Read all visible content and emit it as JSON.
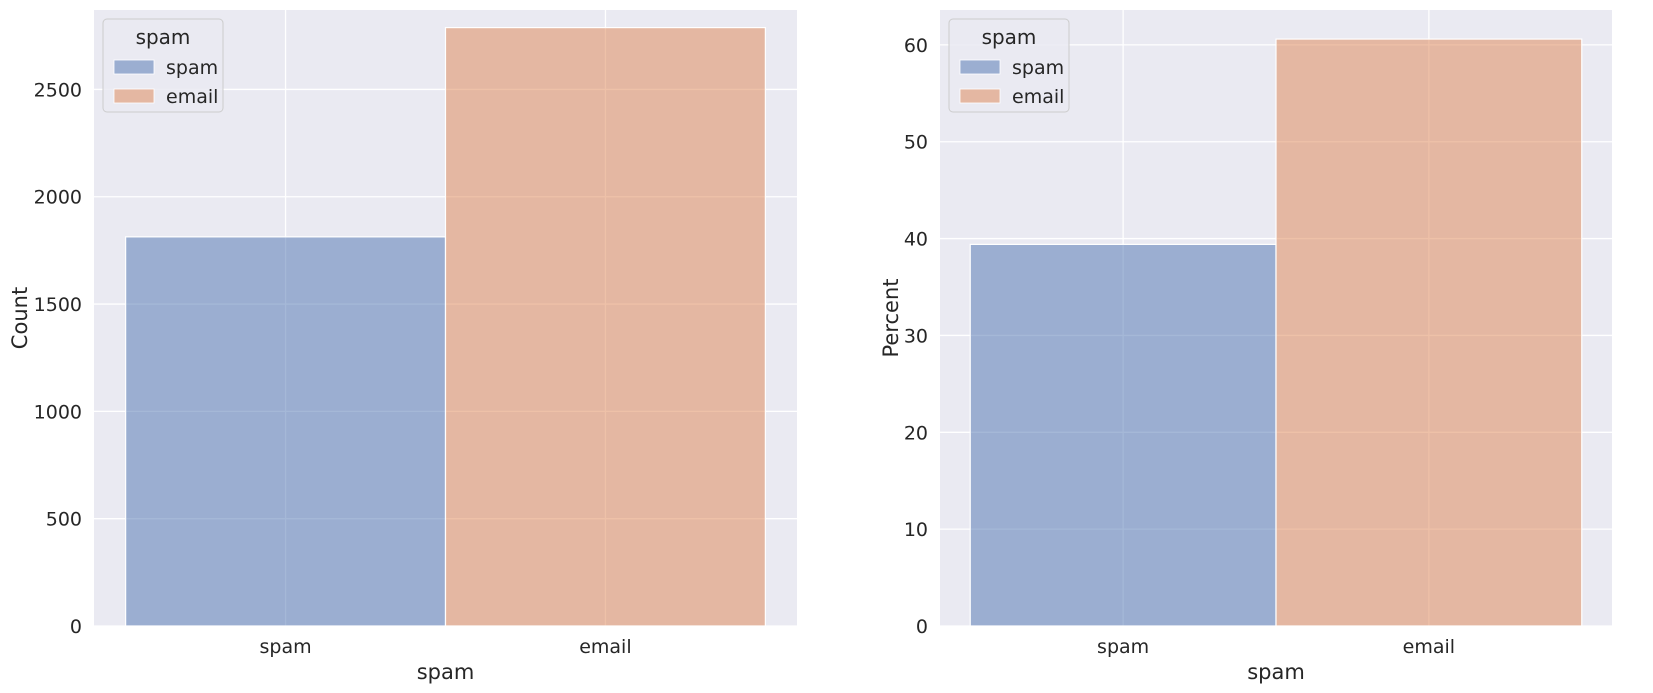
{
  "chart_data": [
    {
      "type": "bar",
      "categories": [
        "spam",
        "email"
      ],
      "series": [
        {
          "name": "spam",
          "values": [
            1813,
            0
          ]
        },
        {
          "name": "email",
          "values": [
            0,
            2788
          ]
        }
      ],
      "xlabel": "spam",
      "ylabel": "Count",
      "ylim": [
        0,
        2870
      ],
      "yticks": [
        0,
        500,
        1000,
        1500,
        2000,
        2500
      ],
      "grid": true,
      "legend": {
        "title": "spam",
        "entries": [
          "spam",
          "email"
        ],
        "placement": "top-left"
      },
      "colors": [
        "#4c72b0",
        "#dd8452"
      ],
      "alpha": 0.5
    },
    {
      "type": "bar",
      "categories": [
        "spam",
        "email"
      ],
      "series": [
        {
          "name": "spam",
          "values": [
            39.4,
            0
          ]
        },
        {
          "name": "email",
          "values": [
            0,
            60.6
          ]
        }
      ],
      "xlabel": "spam",
      "ylabel": "Percent",
      "ylim": [
        0,
        63.6
      ],
      "yticks": [
        0,
        10,
        20,
        30,
        40,
        50,
        60
      ],
      "grid": true,
      "legend": {
        "title": "spam",
        "entries": [
          "spam",
          "email"
        ],
        "placement": "top-left"
      },
      "colors": [
        "#4c72b0",
        "#dd8452"
      ],
      "alpha": 0.5
    }
  ]
}
